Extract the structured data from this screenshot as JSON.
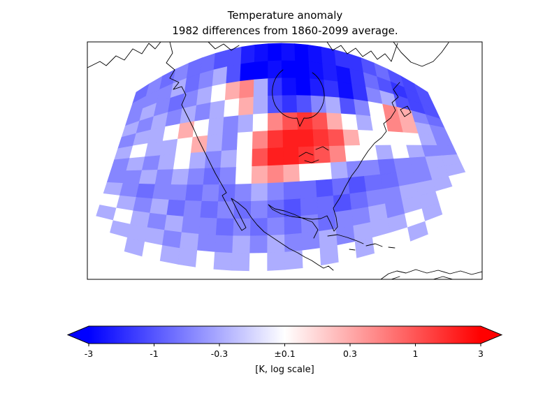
{
  "chart_data": {
    "type": "heatmap",
    "region": "North America",
    "title": "Temperature anomaly",
    "subtitle": "1982 differences from 1860-2099 average.",
    "units": "K",
    "scale": "log",
    "value_range": [
      -3,
      3
    ],
    "colorbar": {
      "label": "[K, log scale]",
      "tick_labels": [
        "-3",
        "-1",
        "-0.3",
        "±0.1",
        "0.3",
        "1",
        "3"
      ],
      "ticks": [
        -3,
        -1,
        -0.3,
        0.1,
        0.3,
        1,
        3
      ],
      "scale": "log",
      "extend": "both",
      "min_color": "#0000ff",
      "mid_color": "#ffffff",
      "max_color": "#ff0000"
    },
    "grid_shape": [
      13,
      22
    ],
    "values": [
      [
        -0.7,
        -0.5,
        -0.7,
        -0.5,
        -0.7,
        -0.7,
        -1,
        -1,
        -2,
        -2.5,
        -3,
        -2.5,
        -3,
        -2.5,
        -2,
        -1.5,
        -1.5,
        -1,
        -0.7,
        -1,
        -1.2,
        -1
      ],
      [
        -0.5,
        -0.5,
        -0.5,
        -0.3,
        -0.7,
        -0.5,
        -0.3,
        -1,
        -3,
        -3,
        -2.5,
        -3,
        -3,
        -2.5,
        -2,
        -2.5,
        -1.5,
        -0.7,
        -1,
        -1.5,
        -1.2,
        -1
      ],
      [
        -0.5,
        -0.3,
        -0.5,
        -0.7,
        -0.5,
        -0.3,
        -0.1,
        0.3,
        0.5,
        -0.3,
        -1.5,
        -2.5,
        -3,
        -2,
        -1.5,
        -2.5,
        -1.5,
        -0.5,
        -0.3,
        -1,
        -1.2,
        -1
      ],
      [
        -0.3,
        -0.5,
        -0.3,
        -0.5,
        -0.3,
        -0.5,
        -0.3,
        -0.1,
        0.3,
        -0.3,
        -1,
        -1.5,
        -1,
        -0.5,
        -0.3,
        -1,
        -0.5,
        0.1,
        0.5,
        0.3,
        -0.5,
        -0.7
      ],
      [
        -0.5,
        -0.3,
        -0.3,
        -0.1,
        0.3,
        -0.1,
        -0.3,
        -0.5,
        -0.3,
        0.1,
        0.5,
        1,
        1.5,
        1,
        0.3,
        -0.1,
        -0.3,
        0.1,
        0.5,
        0.3,
        -0.3,
        -0.5
      ],
      [
        -0.3,
        -0.1,
        -0.3,
        -0.3,
        0.1,
        0.3,
        -0.3,
        -0.5,
        -0.1,
        0.5,
        1.5,
        2,
        2,
        1.5,
        1,
        0.3,
        -0.1,
        -0.1,
        0.1,
        -0.1,
        -0.3,
        -0.5
      ],
      [
        -0.5,
        -0.3,
        -0.5,
        -0.3,
        -0.1,
        -0.3,
        -0.5,
        -0.3,
        0.1,
        1,
        2,
        2,
        1.5,
        1,
        0.5,
        0.1,
        -0.1,
        -0.3,
        -0.1,
        -0.3,
        -0.5,
        -0.5
      ],
      [
        -0.5,
        -0.5,
        -0.3,
        -0.5,
        -0.3,
        -0.5,
        -0.7,
        -0.5,
        -0.1,
        0.3,
        0.5,
        0.3,
        0.1,
        -0.1,
        -0.3,
        -0.5,
        -0.5,
        -0.7,
        -0.5,
        -0.5,
        -0.3,
        -0.3
      ],
      [
        -0.3,
        -0.5,
        -0.7,
        -0.5,
        -0.5,
        -0.7,
        -0.5,
        -0.7,
        -0.5,
        -0.3,
        -0.5,
        -0.7,
        -0.7,
        -1,
        -0.7,
        -1,
        -0.7,
        -0.7,
        -0.5,
        -0.5,
        -0.3,
        -0.3
      ],
      [
        -0.1,
        -0.3,
        -0.5,
        -0.3,
        -0.7,
        -0.5,
        -0.7,
        -0.5,
        -0.7,
        -0.5,
        -0.7,
        -1,
        -0.7,
        -0.7,
        -1,
        -0.7,
        -0.5,
        -0.5,
        -0.3,
        -0.3,
        -0.3,
        -0.1
      ],
      [
        -0.3,
        -0.1,
        -0.3,
        -0.5,
        -0.3,
        -0.5,
        -0.5,
        -0.7,
        -0.5,
        -0.7,
        -0.5,
        -0.7,
        -0.5,
        -0.7,
        -0.5,
        -0.5,
        -0.3,
        -0.5,
        -0.3,
        -0.3,
        -0.1,
        -0.1
      ],
      [
        -0.1,
        -0.3,
        -0.3,
        -0.3,
        -0.5,
        -0.3,
        -0.5,
        -0.5,
        -0.3,
        -0.5,
        -0.3,
        -0.5,
        -0.5,
        -0.3,
        -0.5,
        -0.3,
        -0.3,
        -0.3,
        -0.1,
        -0.3,
        -0.1,
        -0.1
      ],
      [
        -0.1,
        -0.1,
        -0.3,
        -0.1,
        -0.3,
        -0.3,
        -0.1,
        -0.3,
        -0.3,
        -0.1,
        -0.3,
        -0.3,
        -0.1,
        -0.3,
        -0.1,
        -0.3,
        -0.1,
        -0.1,
        -0.3,
        -0.1,
        -0.1,
        -0.1
      ]
    ]
  }
}
